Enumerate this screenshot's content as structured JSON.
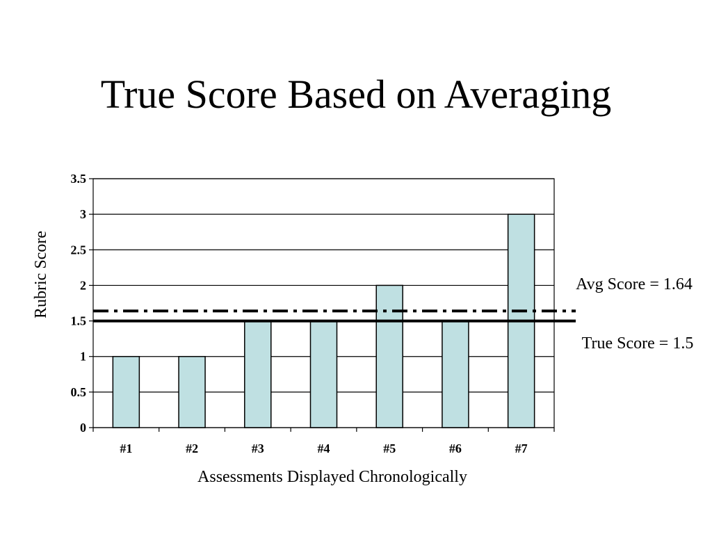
{
  "slide": {
    "title": "True Score Based on Averaging"
  },
  "chart_data": {
    "type": "bar",
    "title": "True Score Based on Averaging",
    "categories": [
      "#1",
      "#2",
      "#3",
      "#4",
      "#5",
      "#6",
      "#7"
    ],
    "values": [
      1,
      1,
      1.5,
      1.5,
      2,
      1.5,
      3
    ],
    "xlabel": "Assessments Displayed Chronologically",
    "ylabel": "Rubric Score",
    "ylim": [
      0,
      3.5
    ],
    "yticks": [
      "0",
      "0.5",
      "1",
      "1.5",
      "2",
      "2.5",
      "3",
      "3.5"
    ],
    "ytick_values": [
      0,
      0.5,
      1,
      1.5,
      2,
      2.5,
      3,
      3.5
    ],
    "grid": true,
    "bar_color": "#bfe0e2",
    "reference_lines": [
      {
        "label": "Avg Score = 1.64",
        "value": 1.64,
        "style": "dash-dot"
      },
      {
        "label": "True Score = 1.5",
        "value": 1.5,
        "style": "solid"
      }
    ]
  }
}
